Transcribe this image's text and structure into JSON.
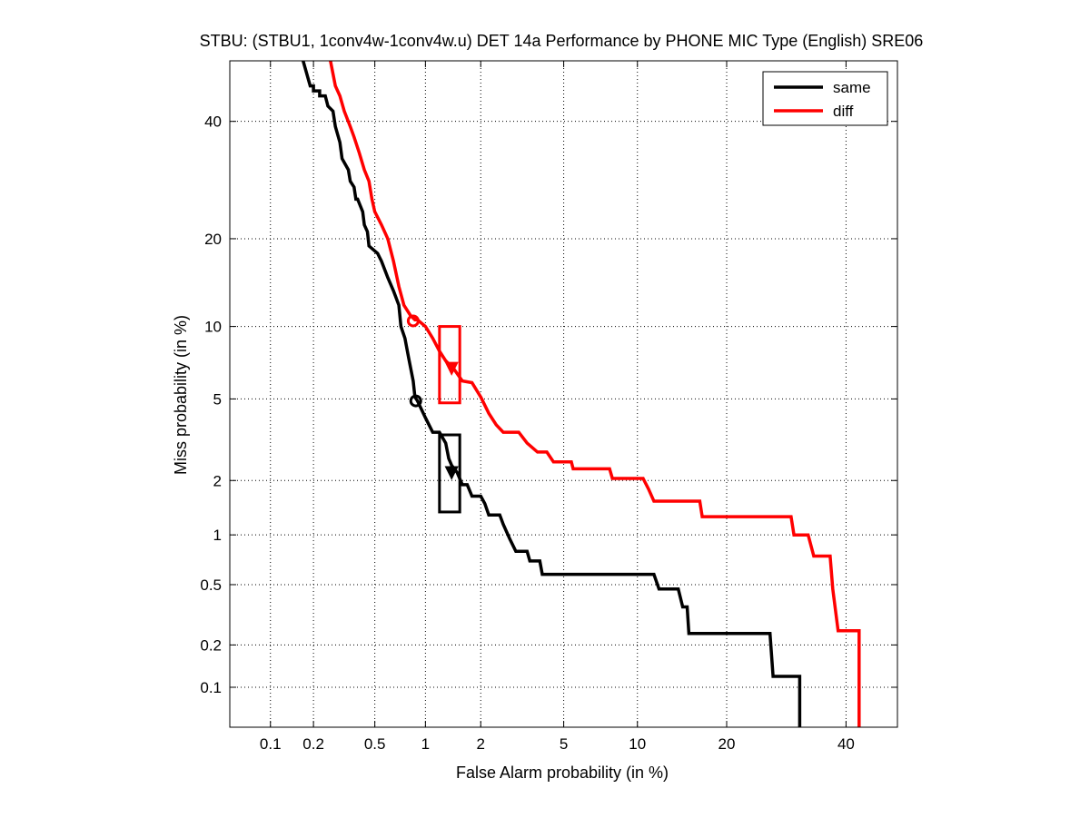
{
  "chart_data": {
    "type": "line",
    "title": "STBU: (STBU1, 1conv4w-1conv4w.u) DET 14a Performance by PHONE MIC Type (English) SRE06",
    "xlabel": "False Alarm probability (in %)",
    "ylabel": "Miss probability (in %)",
    "x_scale": "normal-deviate (probit)",
    "y_scale": "normal-deviate (probit)",
    "xlim": [
      0.05,
      50
    ],
    "ylim": [
      0.05,
      52
    ],
    "x_ticks": [
      0.1,
      0.2,
      0.5,
      1,
      2,
      5,
      10,
      20,
      40
    ],
    "x_tick_labels": [
      "0.1",
      "0.2",
      "0.5",
      "1",
      "2",
      "5",
      "10",
      "20",
      "40"
    ],
    "y_ticks": [
      0.1,
      0.2,
      0.5,
      1,
      2,
      5,
      10,
      20,
      40
    ],
    "y_tick_labels": [
      "0.1",
      "0.2",
      "0.5",
      "1",
      "2",
      "5",
      "10",
      "20",
      "40"
    ],
    "grid": true,
    "legend_position": "top-right",
    "series": [
      {
        "name": "same",
        "color": "#000000",
        "points": [
          [
            0.17,
            52
          ],
          [
            0.19,
            47
          ],
          [
            0.2,
            47
          ],
          [
            0.2,
            46
          ],
          [
            0.22,
            46
          ],
          [
            0.22,
            45
          ],
          [
            0.24,
            45
          ],
          [
            0.25,
            43
          ],
          [
            0.27,
            42
          ],
          [
            0.28,
            39
          ],
          [
            0.3,
            36
          ],
          [
            0.31,
            33
          ],
          [
            0.34,
            31
          ],
          [
            0.35,
            29
          ],
          [
            0.37,
            28
          ],
          [
            0.38,
            26
          ],
          [
            0.39,
            26
          ],
          [
            0.42,
            24
          ],
          [
            0.43,
            22
          ],
          [
            0.45,
            21
          ],
          [
            0.46,
            19
          ],
          [
            0.52,
            18
          ],
          [
            0.55,
            17
          ],
          [
            0.6,
            15
          ],
          [
            0.65,
            13.5
          ],
          [
            0.7,
            12
          ],
          [
            0.72,
            10
          ],
          [
            0.76,
            9
          ],
          [
            0.8,
            7.5
          ],
          [
            0.85,
            6
          ],
          [
            0.87,
            5.1
          ],
          [
            0.9,
            4.9
          ],
          [
            1.0,
            4.1
          ],
          [
            1.1,
            3.5
          ],
          [
            1.2,
            3.5
          ],
          [
            1.3,
            3.1
          ],
          [
            1.35,
            2.6
          ],
          [
            1.4,
            2.4
          ],
          [
            1.5,
            2.2
          ],
          [
            1.6,
            1.9
          ],
          [
            1.7,
            1.9
          ],
          [
            1.8,
            1.65
          ],
          [
            2.0,
            1.65
          ],
          [
            2.1,
            1.5
          ],
          [
            2.2,
            1.3
          ],
          [
            2.5,
            1.3
          ],
          [
            2.6,
            1.15
          ],
          [
            2.8,
            0.95
          ],
          [
            3.0,
            0.8
          ],
          [
            3.4,
            0.8
          ],
          [
            3.5,
            0.7
          ],
          [
            3.9,
            0.7
          ],
          [
            4.0,
            0.58
          ],
          [
            11.5,
            0.58
          ],
          [
            12.0,
            0.47
          ],
          [
            14.0,
            0.47
          ],
          [
            14.5,
            0.36
          ],
          [
            15.0,
            0.36
          ],
          [
            15.2,
            0.24
          ],
          [
            26.5,
            0.24
          ],
          [
            27.0,
            0.12
          ],
          [
            31.5,
            0.12
          ],
          [
            31.5,
            0.05
          ]
        ]
      },
      {
        "name": "diff",
        "color": "#ff0000",
        "points": [
          [
            0.26,
            52
          ],
          [
            0.28,
            47
          ],
          [
            0.3,
            45
          ],
          [
            0.32,
            42
          ],
          [
            0.35,
            39
          ],
          [
            0.37,
            37
          ],
          [
            0.4,
            34
          ],
          [
            0.43,
            31
          ],
          [
            0.46,
            29
          ],
          [
            0.48,
            26
          ],
          [
            0.5,
            24
          ],
          [
            0.55,
            22
          ],
          [
            0.6,
            20
          ],
          [
            0.65,
            17
          ],
          [
            0.7,
            14
          ],
          [
            0.75,
            12
          ],
          [
            0.82,
            11
          ],
          [
            0.87,
            10.6
          ],
          [
            0.9,
            10.6
          ],
          [
            1.0,
            10.0
          ],
          [
            1.1,
            9.0
          ],
          [
            1.2,
            8.0
          ],
          [
            1.3,
            7.3
          ],
          [
            1.45,
            6.7
          ],
          [
            1.6,
            6.0
          ],
          [
            1.8,
            5.9
          ],
          [
            2.0,
            5.1
          ],
          [
            2.2,
            4.3
          ],
          [
            2.4,
            3.8
          ],
          [
            2.6,
            3.5
          ],
          [
            3.1,
            3.5
          ],
          [
            3.4,
            3.1
          ],
          [
            3.8,
            2.8
          ],
          [
            4.2,
            2.8
          ],
          [
            4.5,
            2.5
          ],
          [
            5.4,
            2.5
          ],
          [
            5.5,
            2.3
          ],
          [
            7.8,
            2.3
          ],
          [
            8.0,
            2.05
          ],
          [
            10.5,
            2.05
          ],
          [
            11.0,
            1.8
          ],
          [
            11.5,
            1.55
          ],
          [
            16.5,
            1.55
          ],
          [
            16.8,
            1.27
          ],
          [
            30.0,
            1.27
          ],
          [
            30.5,
            1.0
          ],
          [
            33.0,
            1.0
          ],
          [
            34.0,
            0.75
          ],
          [
            37.0,
            0.75
          ],
          [
            37.5,
            0.47
          ],
          [
            38.5,
            0.25
          ],
          [
            42.5,
            0.25
          ],
          [
            42.5,
            0.05
          ]
        ]
      }
    ],
    "markers": [
      {
        "series": "same",
        "kind": "circle",
        "x": 0.88,
        "y": 4.9
      },
      {
        "series": "same",
        "kind": "triangle-down",
        "x": 1.4,
        "y": 2.2
      },
      {
        "series": "diff",
        "kind": "circle",
        "x": 0.85,
        "y": 10.5
      },
      {
        "series": "diff",
        "kind": "triangle-down",
        "x": 1.4,
        "y": 6.8
      }
    ],
    "boxes": [
      {
        "series": "same",
        "x": [
          1.2,
          1.55
        ],
        "y": [
          1.35,
          3.4
        ]
      },
      {
        "series": "diff",
        "x": [
          1.2,
          1.55
        ],
        "y": [
          4.8,
          10.0
        ]
      }
    ]
  }
}
